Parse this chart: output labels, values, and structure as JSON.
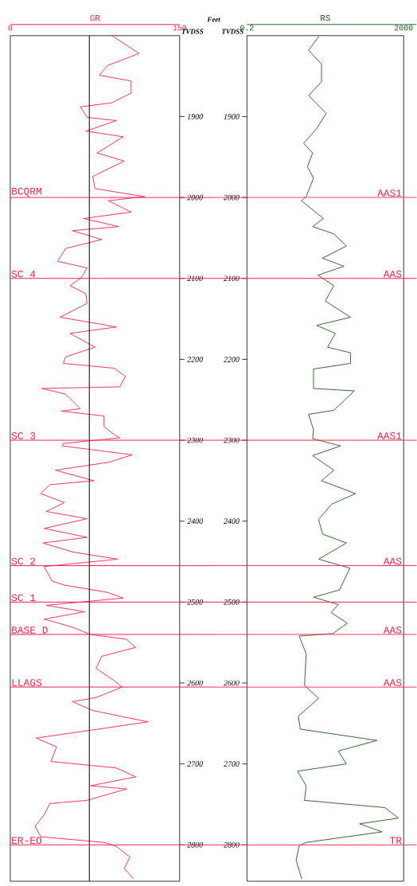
{
  "chart_data": [
    {
      "type": "line",
      "xlabel": "GR",
      "ylabel": "TVDSS",
      "annotations": [
        "Feet"
      ],
      "xlim": [
        0,
        150
      ],
      "xticks": [
        0,
        150
      ],
      "ylim": [
        2845,
        1800
      ],
      "yticks": [
        1900,
        2000,
        2100,
        2200,
        2300,
        2400,
        2500,
        2600,
        2700,
        2800
      ],
      "series": [
        {
          "color": "#ff1f4b",
          "x": [
            90,
            114,
            86,
            79,
            107,
            107,
            90,
            62,
            68,
            94,
            67,
            100,
            77,
            101,
            73,
            75,
            119,
            87,
            107,
            65,
            96,
            55,
            81,
            49,
            42,
            68,
            63,
            53,
            67,
            68,
            44,
            65,
            94,
            53,
            75,
            49,
            47,
            92,
            102,
            97,
            28,
            49,
            62,
            45,
            83,
            83,
            91,
            97,
            47,
            46,
            108,
            88,
            40,
            74,
            35,
            27,
            48,
            32,
            68,
            30,
            68,
            29,
            55,
            95,
            30,
            37,
            48,
            86,
            100,
            32,
            66,
            30,
            55,
            71,
            103,
            111,
            81,
            76,
            91,
            99,
            76,
            55,
            73,
            122,
            78,
            23,
            41,
            36,
            94,
            111,
            71,
            103,
            68,
            35,
            30,
            22,
            27,
            83,
            94,
            106,
            101,
            109
          ],
          "values": [
            1800,
            1822,
            1837,
            1849,
            1856,
            1871,
            1883,
            1888,
            1901,
            1905,
            1918,
            1925,
            1945,
            1955,
            1974,
            1989,
            1999,
            2004,
            2018,
            2026,
            2036,
            2041,
            2052,
            2063,
            2079,
            2087,
            2099,
            2109,
            2119,
            2131,
            2148,
            2153,
            2160,
            2168,
            2185,
            2197,
            2205,
            2211,
            2221,
            2234,
            2236,
            2243,
            2261,
            2264,
            2270,
            2283,
            2292,
            2297,
            2304,
            2307,
            2318,
            2327,
            2337,
            2350,
            2355,
            2366,
            2377,
            2388,
            2397,
            2409,
            2420,
            2427,
            2438,
            2447,
            2456,
            2474,
            2479,
            2488,
            2495,
            2504,
            2512,
            2521,
            2531,
            2540,
            2546,
            2556,
            2567,
            2582,
            2596,
            2605,
            2618,
            2623,
            2634,
            2648,
            2657,
            2668,
            2679,
            2697,
            2705,
            2716,
            2727,
            2731,
            2745,
            2749,
            2763,
            2777,
            2790,
            2797,
            2802,
            2815,
            2829,
            2842
          ]
        }
      ],
      "ref_lines": [
        {
          "axis": "x",
          "value": 70,
          "color": "#000000"
        },
        {
          "axis": "y",
          "value": 2000,
          "label": "BCQRM",
          "color": "#ff1f4b"
        },
        {
          "axis": "y",
          "value": 2100,
          "label": "SC 4",
          "color": "#ff1f4b"
        },
        {
          "axis": "y",
          "value": 2300,
          "label": "SC 3",
          "color": "#ff1f4b"
        },
        {
          "axis": "y",
          "value": 2455,
          "label": "SC 2",
          "color": "#ff1f4b"
        },
        {
          "axis": "y",
          "value": 2500,
          "label": "SC 1",
          "color": "#ff1f4b"
        },
        {
          "axis": "y",
          "value": 2540,
          "label": "BASE D",
          "color": "#ff1f4b"
        },
        {
          "axis": "y",
          "value": 2605,
          "label": "LLAGS",
          "color": "#ff1f4b"
        },
        {
          "axis": "y",
          "value": 2800,
          "label": "ER-EO",
          "color": "#ff1f4b"
        }
      ]
    },
    {
      "type": "line",
      "xlabel": "RS",
      "ylabel": "TVDSS",
      "log": "x",
      "xlim": [
        0.2,
        2000
      ],
      "xticks": [
        0.2,
        2000
      ],
      "ylim": [
        2845,
        1800
      ],
      "yticks": [
        1900,
        2000,
        2100,
        2200,
        2300,
        2400,
        2500,
        2600,
        2700,
        2800
      ],
      "series": [
        {
          "color": "#1d5c1d",
          "x": [
            13.6,
            7.5,
            16,
            16,
            7.5,
            21,
            12,
            5.6,
            9.5,
            7,
            10,
            6.5,
            4.9,
            18,
            9.5,
            33,
            69,
            17,
            60,
            13,
            33,
            20,
            88,
            12,
            36,
            23,
            88,
            88,
            10,
            10,
            110,
            33,
            7.5,
            10,
            9.5,
            49,
            9.5,
            33,
            16,
            118,
            29,
            13.5,
            17,
            69,
            13.5,
            85,
            46,
            10,
            43,
            28,
            73,
            31,
            4.3,
            6.5,
            5.9,
            13.5,
            4.1,
            4.6,
            418,
            43,
            69,
            3.9,
            6.5,
            5.9,
            667,
            1470,
            150,
            560,
            6.5,
            4.3,
            3.6,
            5
          ],
          "values": [
            1801,
            1818,
            1835,
            1857,
            1874,
            1896,
            1915,
            1933,
            1945,
            1962,
            1976,
            1999,
            2004,
            2026,
            2036,
            2045,
            2060,
            2075,
            2085,
            2096,
            2109,
            2128,
            2148,
            2158,
            2168,
            2185,
            2192,
            2205,
            2212,
            2236,
            2239,
            2263,
            2268,
            2287,
            2298,
            2307,
            2319,
            2337,
            2350,
            2366,
            2379,
            2398,
            2416,
            2427,
            2447,
            2458,
            2485,
            2494,
            2503,
            2513,
            2526,
            2539,
            2542,
            2564,
            2603,
            2619,
            2641,
            2657,
            2671,
            2684,
            2700,
            2709,
            2727,
            2745,
            2754,
            2767,
            2774,
            2784,
            2797,
            2801,
            2819,
            2842
          ]
        }
      ],
      "ref_lines": [
        {
          "axis": "y",
          "value": 2000,
          "label": "AAS1",
          "color": "#ff1f4b"
        },
        {
          "axis": "y",
          "value": 2100,
          "label": "AAS",
          "color": "#ff1f4b"
        },
        {
          "axis": "y",
          "value": 2300,
          "label": "AAS1",
          "color": "#ff1f4b"
        },
        {
          "axis": "y",
          "value": 2455,
          "label": "AAS",
          "color": "#ff1f4b"
        },
        {
          "axis": "y",
          "value": 2500,
          "color": "#ff1f4b"
        },
        {
          "axis": "y",
          "value": 2540,
          "label": "AAS",
          "color": "#ff1f4b"
        },
        {
          "axis": "y",
          "value": 2605,
          "label": "AAS",
          "color": "#ff1f4b"
        },
        {
          "axis": "y",
          "value": 2800,
          "label": "TR",
          "color": "#ff1f4b"
        }
      ]
    }
  ]
}
